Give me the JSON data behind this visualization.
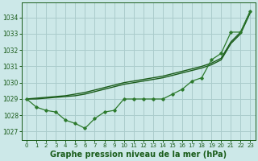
{
  "bg_color": "#cce8e8",
  "grid_color": "#aacccc",
  "line_color_dark": "#1a5c1a",
  "line_color_mid": "#2d7a2d",
  "xlabel": "Graphe pression niveau de la mer (hPa)",
  "xlabel_fontsize": 7,
  "ylim": [
    1026.5,
    1034.9
  ],
  "yticks": [
    1027,
    1028,
    1029,
    1030,
    1031,
    1032,
    1033,
    1034
  ],
  "xlim": [
    -0.5,
    23.5
  ],
  "xticks": [
    0,
    1,
    2,
    3,
    4,
    5,
    6,
    7,
    8,
    9,
    10,
    11,
    12,
    13,
    14,
    15,
    16,
    17,
    18,
    19,
    20,
    21,
    22,
    23
  ],
  "y_jagged": [
    1029.0,
    1028.5,
    1028.3,
    1028.2,
    1027.7,
    1027.5,
    1027.2,
    1027.8,
    1028.2,
    1028.3,
    1029.0,
    1029.0,
    1029.0,
    1029.0,
    1029.0,
    1029.3,
    1029.6,
    1030.1,
    1030.3,
    1031.4,
    1031.8,
    1033.1,
    1033.1,
    1034.4
  ],
  "y_smooth1": [
    1029.0,
    1029.05,
    1029.1,
    1029.15,
    1029.2,
    1029.3,
    1029.4,
    1029.55,
    1029.7,
    1029.85,
    1030.0,
    1030.1,
    1030.2,
    1030.3,
    1030.4,
    1030.55,
    1030.7,
    1030.85,
    1031.0,
    1031.2,
    1031.5,
    1032.5,
    1033.1,
    1034.4
  ],
  "y_smooth2": [
    1029.0,
    1029.0,
    1029.05,
    1029.1,
    1029.15,
    1029.2,
    1029.3,
    1029.45,
    1029.6,
    1029.75,
    1029.9,
    1030.0,
    1030.1,
    1030.2,
    1030.3,
    1030.45,
    1030.6,
    1030.75,
    1030.9,
    1031.1,
    1031.4,
    1032.4,
    1033.0,
    1034.3
  ]
}
